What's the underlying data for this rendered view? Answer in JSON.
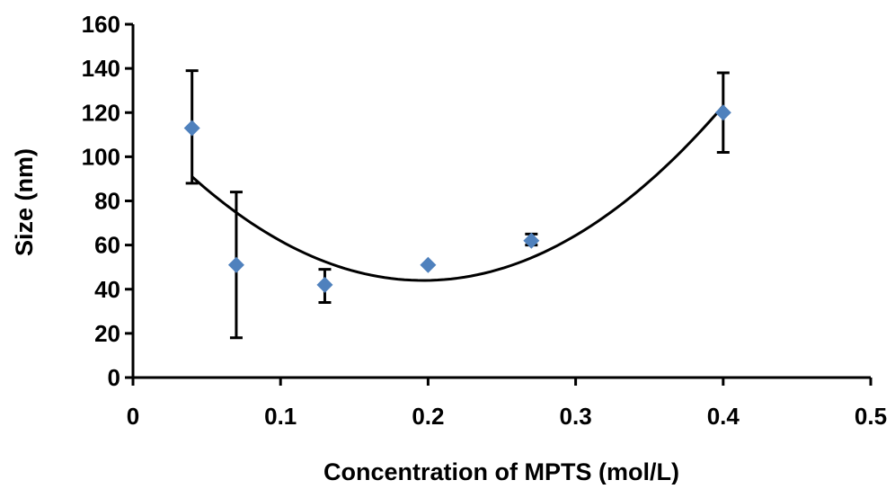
{
  "chart_data": {
    "type": "scatter",
    "title": "",
    "xlabel": "Concentration of MPTS (mol/L)",
    "ylabel": "Size (nm)",
    "xlim": [
      0,
      0.5
    ],
    "ylim": [
      0,
      160
    ],
    "x_ticks": [
      0,
      0.1,
      0.2,
      0.3,
      0.4,
      0.5
    ],
    "x_tick_labels": [
      "0",
      "0.1",
      "0.2",
      "0.3",
      "0.4",
      "0.5"
    ],
    "y_ticks": [
      0,
      20,
      40,
      60,
      80,
      100,
      120,
      140,
      160
    ],
    "y_tick_labels": [
      "0",
      "20",
      "40",
      "60",
      "80",
      "100",
      "120",
      "140",
      "160"
    ],
    "grid": false,
    "legend": "none",
    "series": [
      {
        "marker": "diamond",
        "color": "#4F81BD",
        "points": [
          {
            "x": 0.04,
            "y": 113,
            "err_low": 88,
            "err_high": 139
          },
          {
            "x": 0.07,
            "y": 51,
            "err_low": 18,
            "err_high": 84
          },
          {
            "x": 0.13,
            "y": 42,
            "err_low": 34,
            "err_high": 49
          },
          {
            "x": 0.2,
            "y": 51,
            "err_low": 51,
            "err_high": 51
          },
          {
            "x": 0.27,
            "y": 62,
            "err_low": 60,
            "err_high": 65
          },
          {
            "x": 0.4,
            "y": 120,
            "err_low": 102,
            "err_high": 138
          }
        ]
      }
    ],
    "trendline": {
      "type": "polynomial",
      "order": 2,
      "x_range": [
        0.04,
        0.4
      ],
      "points": [
        {
          "x": 0.04,
          "y": 91
        },
        {
          "x": 0.2,
          "y": 44
        },
        {
          "x": 0.4,
          "y": 123
        }
      ]
    }
  }
}
